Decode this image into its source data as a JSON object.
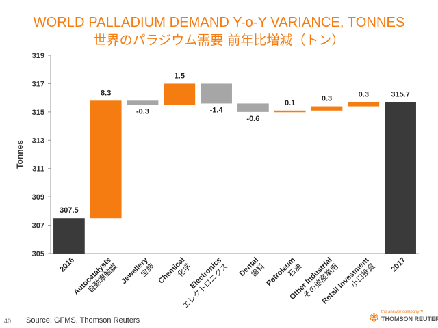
{
  "header": {
    "title_en": "WORLD PALLADIUM DEMAND Y-o-Y VARIANCE, TONNES",
    "title_ja": "世界のパラジウム需要 前年比増減（トン）"
  },
  "chart_data": {
    "type": "bar",
    "subtype": "waterfall",
    "ylabel": "Tonnes",
    "ylim": [
      305,
      319
    ],
    "yticks": [
      305,
      307,
      309,
      311,
      313,
      315,
      317,
      319
    ],
    "grid": false,
    "steps": [
      {
        "label": "2016",
        "label_ja": "",
        "kind": "total",
        "value": 307.5,
        "data_label": "307.5"
      },
      {
        "label": "Autocatalysts",
        "label_ja": "自動車触媒",
        "kind": "delta",
        "value": 8.3,
        "data_label": "8.3"
      },
      {
        "label": "Jewellery",
        "label_ja": "宝飾",
        "kind": "delta",
        "value": -0.3,
        "data_label": "-0.3"
      },
      {
        "label": "Chemical",
        "label_ja": "化学",
        "kind": "delta",
        "value": 1.5,
        "data_label": "1.5"
      },
      {
        "label": "Electronics",
        "label_ja": "エレクトロニクス",
        "kind": "delta",
        "value": -1.4,
        "data_label": "-1.4"
      },
      {
        "label": "Dental",
        "label_ja": "歯科",
        "kind": "delta",
        "value": -0.6,
        "data_label": "-0.6"
      },
      {
        "label": "Petroleum",
        "label_ja": "石油",
        "kind": "delta",
        "value": 0.1,
        "data_label": "0.1"
      },
      {
        "label": "Other Industrial",
        "label_ja": "その他産業用",
        "kind": "delta",
        "value": 0.3,
        "data_label": "0.3"
      },
      {
        "label": "Retail Investment",
        "label_ja": "小口投資",
        "kind": "delta",
        "value": 0.3,
        "data_label": "0.3"
      },
      {
        "label": "2017",
        "label_ja": "",
        "kind": "total",
        "value": 315.7,
        "data_label": "315.7"
      }
    ],
    "colors": {
      "total": "#3a3a3a",
      "increase": "#f47c10",
      "decrease": "#a6a6a6"
    }
  },
  "footer": {
    "source": "Source: GFMS, Thomson Reuters",
    "page_number": "40",
    "logo_tagline": "the answer company™",
    "logo_name": "THOMSON REUTERS®"
  }
}
